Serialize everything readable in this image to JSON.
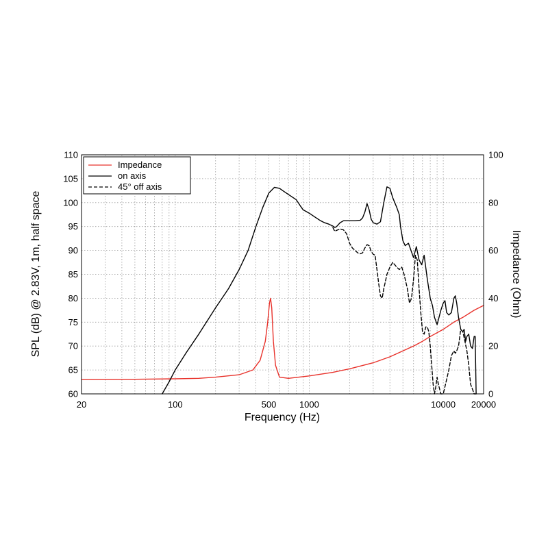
{
  "chart_data": {
    "type": "line",
    "xlabel": "Frequency (Hz)",
    "ylabel": "SPL (dB) @ 2.83V, 1m, half space",
    "y2label": "Impedance (Ohm)",
    "xscale": "log",
    "xlim": [
      20,
      20000
    ],
    "ylim": [
      60,
      110
    ],
    "y2lim": [
      0,
      100
    ],
    "grid": true,
    "legend_position": "top-left",
    "x_tick_labels": [
      "20",
      "100",
      "500",
      "1000",
      "10000",
      "20000"
    ],
    "x_ticks": [
      20,
      100,
      500,
      1000,
      10000,
      20000
    ],
    "y_ticks": [
      60,
      65,
      70,
      75,
      80,
      85,
      90,
      95,
      100,
      105,
      110
    ],
    "y2_ticks": [
      0,
      20,
      40,
      60,
      80,
      100
    ],
    "series": [
      {
        "name": "Impedance",
        "axis": "right",
        "color": "#e8312a",
        "style": "solid",
        "points": [
          [
            20,
            6
          ],
          [
            50,
            6.1
          ],
          [
            100,
            6.3
          ],
          [
            150,
            6.5
          ],
          [
            200,
            7
          ],
          [
            300,
            8
          ],
          [
            380,
            10
          ],
          [
            430,
            14
          ],
          [
            470,
            22
          ],
          [
            490,
            30
          ],
          [
            505,
            38
          ],
          [
            515,
            40
          ],
          [
            525,
            36
          ],
          [
            540,
            22
          ],
          [
            560,
            12
          ],
          [
            600,
            7
          ],
          [
            700,
            6.5
          ],
          [
            1000,
            7.5
          ],
          [
            1500,
            9
          ],
          [
            2000,
            10.5
          ],
          [
            3000,
            13
          ],
          [
            4000,
            15.5
          ],
          [
            5000,
            18
          ],
          [
            6000,
            20
          ],
          [
            7000,
            22
          ],
          [
            8000,
            24
          ],
          [
            10000,
            27
          ],
          [
            12000,
            30
          ],
          [
            14000,
            32
          ],
          [
            17000,
            35
          ],
          [
            20000,
            37
          ]
        ]
      },
      {
        "name": "on axis",
        "axis": "left",
        "color": "#000000",
        "style": "solid",
        "points": [
          [
            80,
            60
          ],
          [
            90,
            62.5
          ],
          [
            100,
            65
          ],
          [
            120,
            68.5
          ],
          [
            150,
            72.5
          ],
          [
            200,
            78
          ],
          [
            250,
            82
          ],
          [
            300,
            86
          ],
          [
            350,
            90
          ],
          [
            400,
            95
          ],
          [
            450,
            99
          ],
          [
            500,
            102
          ],
          [
            550,
            103.2
          ],
          [
            600,
            103
          ],
          [
            650,
            102.3
          ],
          [
            700,
            101.7
          ],
          [
            800,
            100.6
          ],
          [
            850,
            99.5
          ],
          [
            900,
            98.5
          ],
          [
            1000,
            97.8
          ],
          [
            1100,
            97
          ],
          [
            1200,
            96.3
          ],
          [
            1300,
            95.8
          ],
          [
            1400,
            95.5
          ],
          [
            1500,
            95.1
          ],
          [
            1550,
            94.8
          ],
          [
            1600,
            95
          ],
          [
            1700,
            95.8
          ],
          [
            1800,
            96.2
          ],
          [
            2000,
            96.2
          ],
          [
            2200,
            96.2
          ],
          [
            2400,
            96.3
          ],
          [
            2500,
            96.8
          ],
          [
            2600,
            98
          ],
          [
            2700,
            99.8
          ],
          [
            2800,
            98.5
          ],
          [
            2900,
            96.5
          ],
          [
            3000,
            95.8
          ],
          [
            3200,
            95.5
          ],
          [
            3400,
            96
          ],
          [
            3600,
            100
          ],
          [
            3800,
            103.3
          ],
          [
            4000,
            103
          ],
          [
            4200,
            101
          ],
          [
            4500,
            99
          ],
          [
            4700,
            97.5
          ],
          [
            4800,
            95
          ],
          [
            5000,
            92
          ],
          [
            5200,
            91
          ],
          [
            5500,
            91.5
          ],
          [
            6000,
            88.5
          ],
          [
            6300,
            90.8
          ],
          [
            6600,
            88
          ],
          [
            6900,
            87
          ],
          [
            7200,
            89
          ],
          [
            7600,
            84
          ],
          [
            8000,
            80
          ],
          [
            8300,
            78.5
          ],
          [
            8600,
            76
          ],
          [
            9000,
            74.5
          ],
          [
            9300,
            76
          ],
          [
            9600,
            77.5
          ],
          [
            10000,
            79
          ],
          [
            10300,
            79.5
          ],
          [
            10600,
            77
          ],
          [
            11000,
            76.5
          ],
          [
            11500,
            77
          ],
          [
            12000,
            80
          ],
          [
            12300,
            80.5
          ],
          [
            12600,
            79
          ],
          [
            13000,
            76
          ],
          [
            13500,
            73.5
          ],
          [
            14000,
            73
          ],
          [
            14300,
            73.5
          ],
          [
            14700,
            71
          ],
          [
            15000,
            72
          ],
          [
            15500,
            72.5
          ],
          [
            16000,
            70
          ],
          [
            16500,
            69.5
          ],
          [
            17000,
            72
          ],
          [
            17300,
            72
          ],
          [
            17600,
            60
          ]
        ]
      },
      {
        "name": "45° off axis",
        "axis": "left",
        "color": "#000000",
        "style": "dashed",
        "points": [
          [
            1500,
            94.8
          ],
          [
            1550,
            94
          ],
          [
            1600,
            94.2
          ],
          [
            1700,
            94.5
          ],
          [
            1800,
            94.3
          ],
          [
            1900,
            93.5
          ],
          [
            2000,
            91.5
          ],
          [
            2100,
            90.5
          ],
          [
            2200,
            90
          ],
          [
            2300,
            89.5
          ],
          [
            2400,
            89.3
          ],
          [
            2500,
            89.5
          ],
          [
            2600,
            90.5
          ],
          [
            2700,
            91.2
          ],
          [
            2800,
            91
          ],
          [
            2900,
            89.8
          ],
          [
            3000,
            89.2
          ],
          [
            3100,
            89
          ],
          [
            3200,
            86
          ],
          [
            3300,
            83
          ],
          [
            3400,
            80.5
          ],
          [
            3500,
            80
          ],
          [
            3600,
            82
          ],
          [
            3800,
            85
          ],
          [
            4000,
            86.5
          ],
          [
            4200,
            87.5
          ],
          [
            4500,
            86.5
          ],
          [
            4700,
            86
          ],
          [
            4900,
            86.5
          ],
          [
            5100,
            85
          ],
          [
            5400,
            82
          ],
          [
            5600,
            79
          ],
          [
            5800,
            80
          ],
          [
            6000,
            84
          ],
          [
            6200,
            89
          ],
          [
            6400,
            88
          ],
          [
            6600,
            82
          ],
          [
            6800,
            77
          ],
          [
            7000,
            73
          ],
          [
            7200,
            72.5
          ],
          [
            7400,
            74
          ],
          [
            7600,
            74
          ],
          [
            7800,
            73
          ],
          [
            8000,
            70
          ],
          [
            8200,
            66
          ],
          [
            8400,
            62
          ],
          [
            8600,
            60
          ],
          [
            8800,
            61.5
          ],
          [
            9000,
            63.5
          ],
          [
            9200,
            62
          ],
          [
            9400,
            61
          ],
          [
            9600,
            60
          ],
          [
            10000,
            60
          ],
          [
            10400,
            62
          ],
          [
            11000,
            65
          ],
          [
            11500,
            68
          ],
          [
            12000,
            69
          ],
          [
            12300,
            68.5
          ],
          [
            12600,
            69
          ],
          [
            13000,
            70
          ],
          [
            13500,
            73.5
          ],
          [
            14000,
            73
          ],
          [
            14500,
            71
          ],
          [
            15000,
            69
          ],
          [
            15500,
            66
          ],
          [
            16000,
            62
          ],
          [
            16500,
            61
          ],
          [
            17000,
            60
          ],
          [
            17600,
            60
          ]
        ]
      }
    ]
  }
}
